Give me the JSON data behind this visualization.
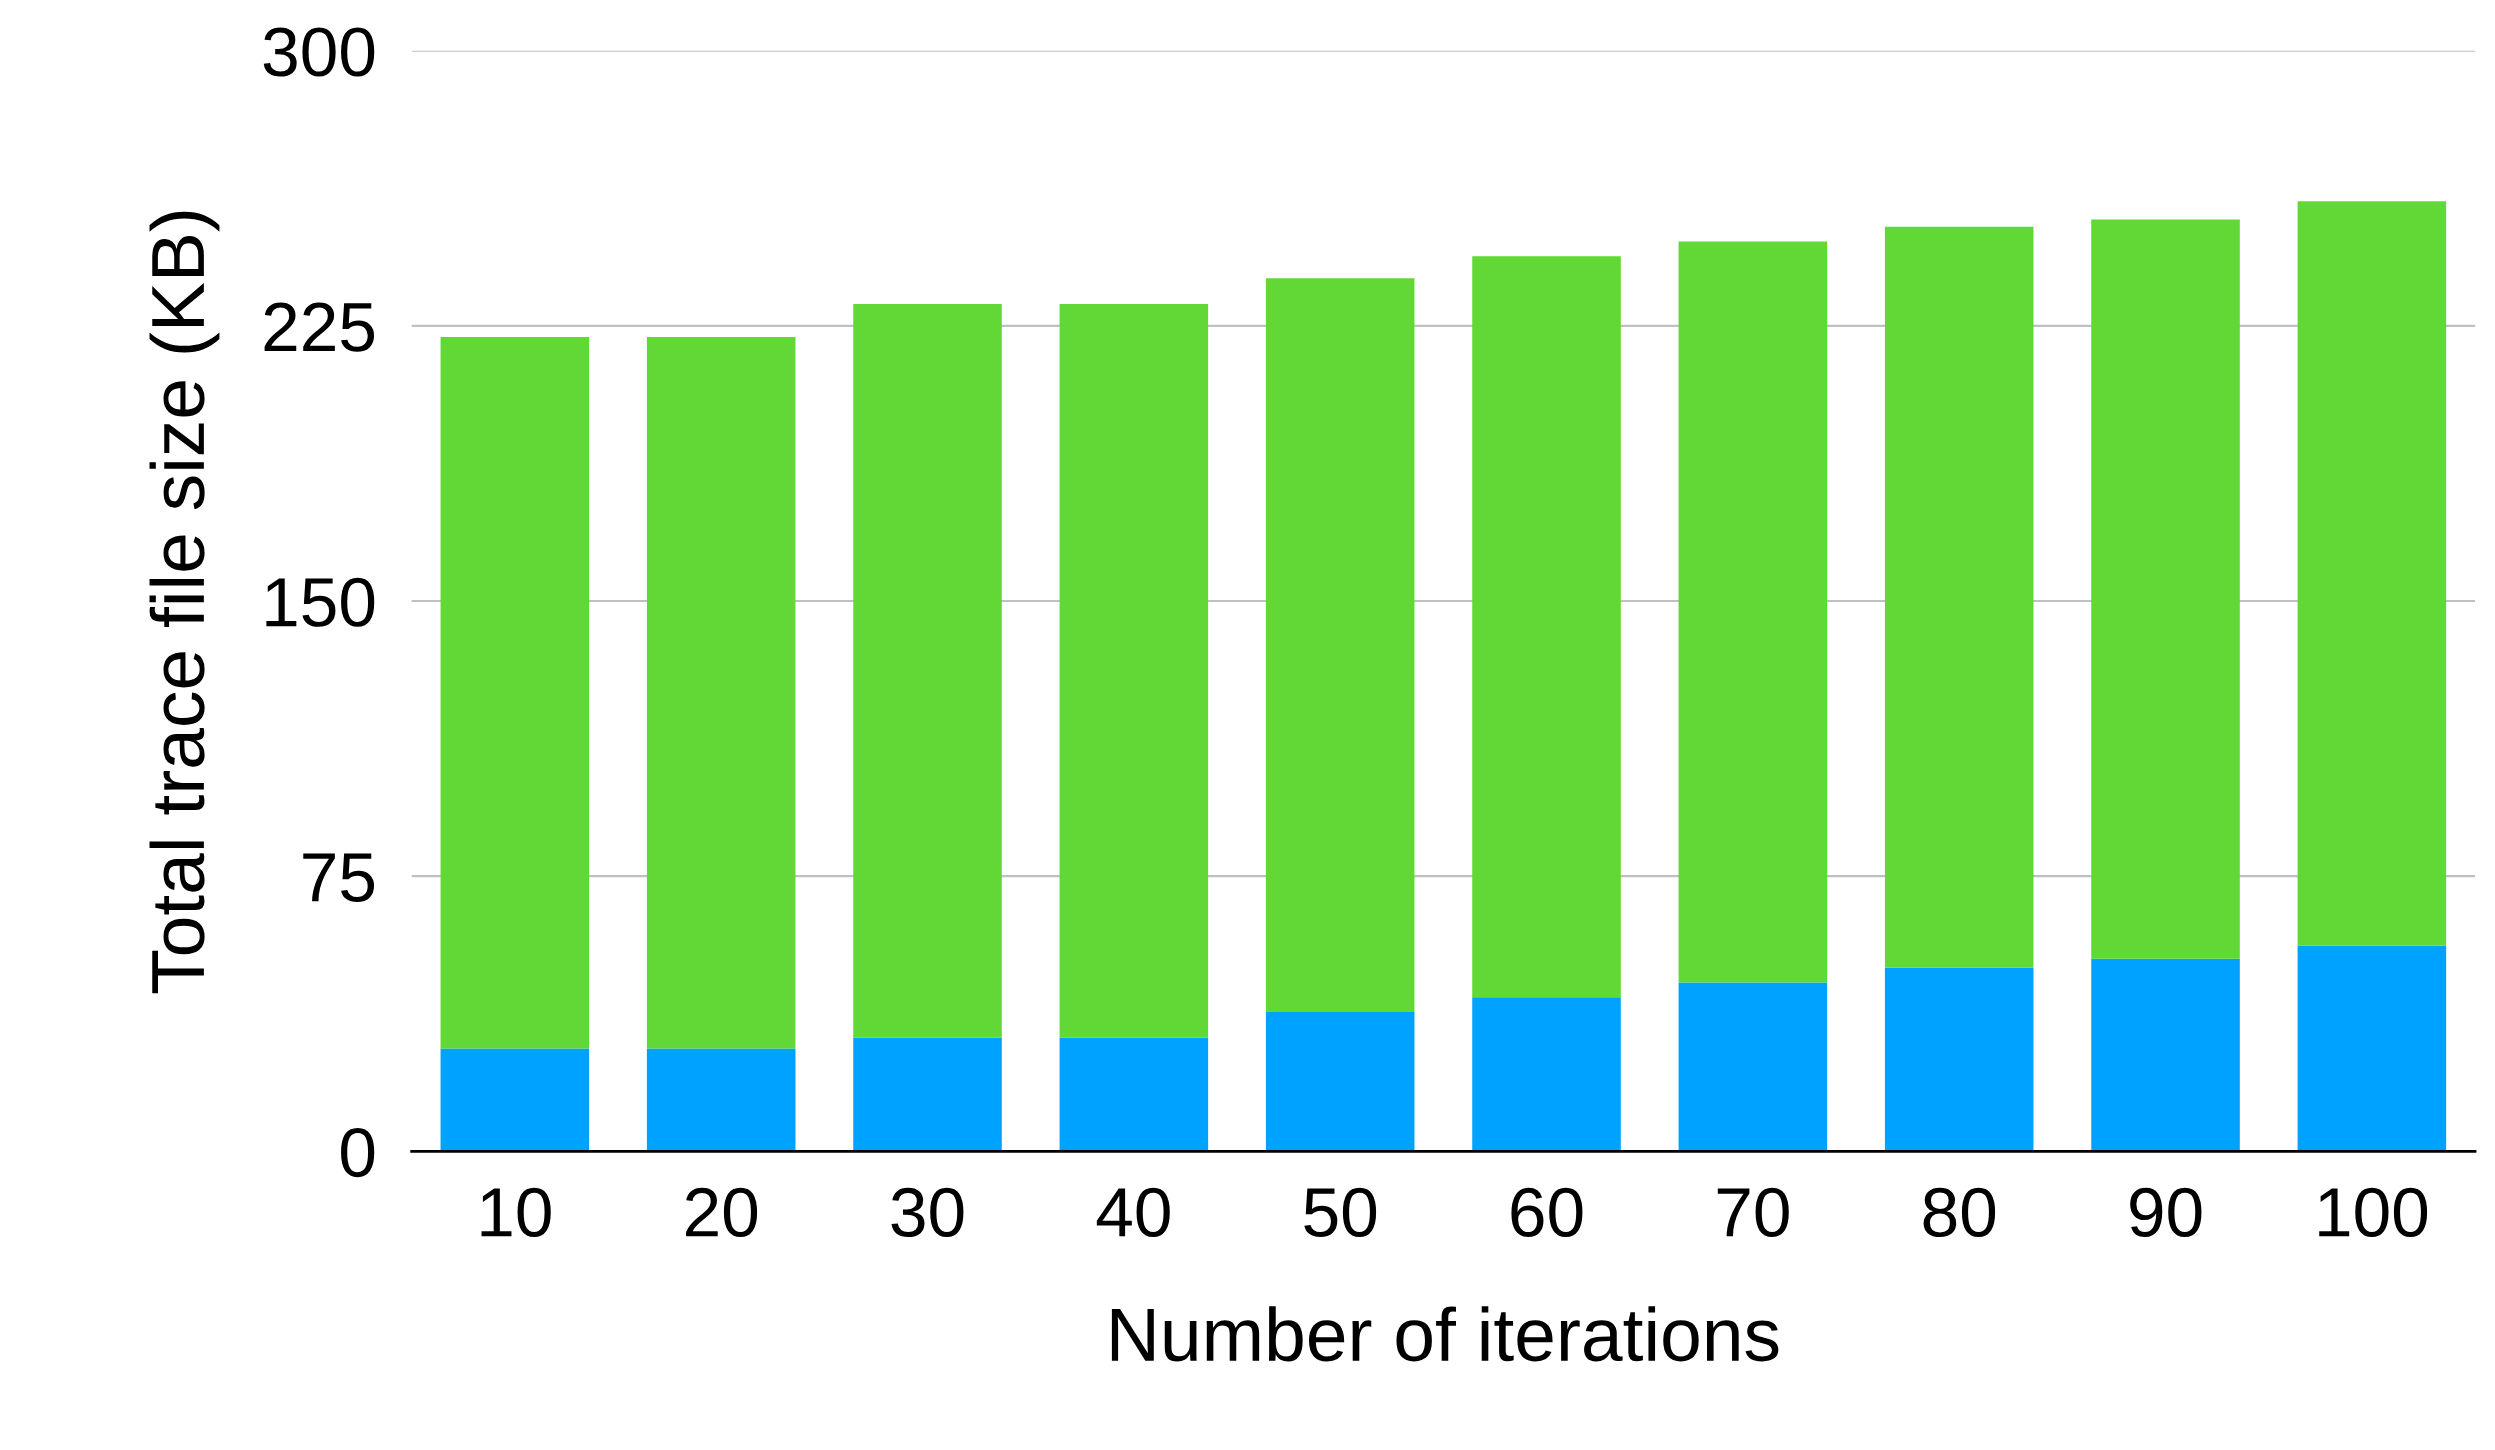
{
  "chart_data": {
    "type": "bar",
    "stacked": true,
    "xlabel": "Number of iterations",
    "ylabel": "Total trace file size (KB)",
    "categories": [
      "10",
      "20",
      "30",
      "40",
      "50",
      "60",
      "70",
      "80",
      "90",
      "100"
    ],
    "series": [
      {
        "color": "#00a2ff",
        "values": [
          28,
          28,
          31,
          31,
          38,
          42,
          46,
          50,
          52.5,
          56
        ]
      },
      {
        "color": "#61d836",
        "values": [
          194,
          194,
          200,
          200,
          200,
          202,
          202,
          202,
          201.5,
          203
        ]
      }
    ],
    "ylim": [
      0,
      300
    ],
    "yticks": [
      0,
      75,
      150,
      225,
      300
    ],
    "grid": "y",
    "legend": false
  }
}
